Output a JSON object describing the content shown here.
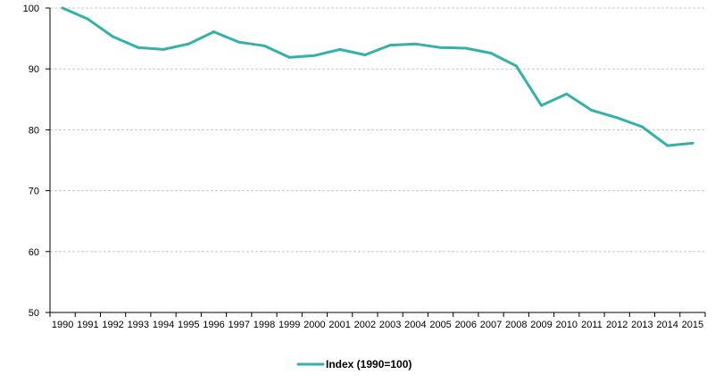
{
  "chart_data": {
    "type": "line",
    "title": "",
    "xlabel": "",
    "ylabel": "",
    "x": [
      "1990",
      "1991",
      "1992",
      "1993",
      "1994",
      "1995",
      "1996",
      "1997",
      "1998",
      "1999",
      "2000",
      "2001",
      "2002",
      "2003",
      "2004",
      "2005",
      "2006",
      "2007",
      "2008",
      "2009",
      "2010",
      "2011",
      "2012",
      "2013",
      "2014",
      "2015"
    ],
    "series": [
      {
        "name": "Index (1990=100)",
        "color": "#32b2a9",
        "values": [
          100.0,
          98.2,
          95.3,
          93.5,
          93.2,
          94.1,
          96.1,
          94.4,
          93.8,
          91.9,
          92.2,
          93.2,
          92.3,
          93.9,
          94.1,
          93.5,
          93.4,
          92.6,
          90.5,
          84.0,
          85.9,
          83.2,
          82.0,
          80.5,
          77.4,
          77.8
        ]
      }
    ],
    "ylim": [
      50,
      100
    ],
    "yticks": [
      50,
      60,
      70,
      80,
      90,
      100
    ],
    "grid": true,
    "legend_position": "bottom-center"
  }
}
